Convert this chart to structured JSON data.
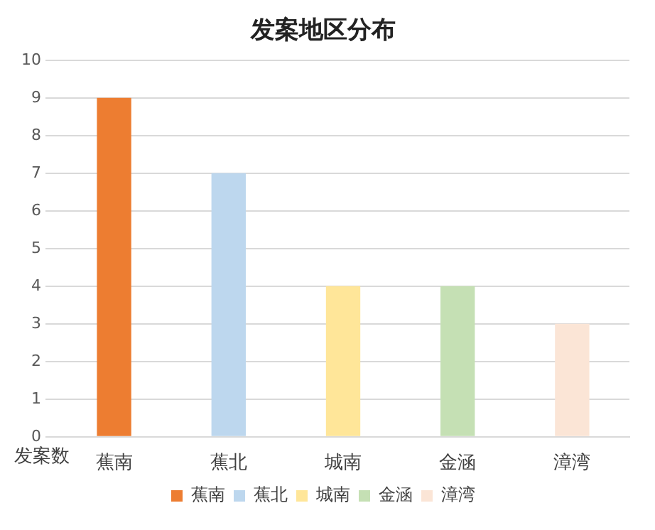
{
  "chart_data": {
    "type": "bar",
    "title": "发案地区分布",
    "xlabel": "发案数",
    "categories": [
      "蕉南",
      "蕉北",
      "城南",
      "金涵",
      "漳湾"
    ],
    "series": [
      {
        "name": "蕉南",
        "color": "#ed7d31",
        "values": [
          9,
          null,
          null,
          null,
          null
        ]
      },
      {
        "name": "蕉北",
        "color": "#bdd7ee",
        "values": [
          null,
          7,
          null,
          null,
          null
        ]
      },
      {
        "name": "城南",
        "color": "#ffe699",
        "values": [
          null,
          null,
          4,
          null,
          null
        ]
      },
      {
        "name": "金涵",
        "color": "#c5e0b4",
        "values": [
          null,
          null,
          null,
          4,
          null
        ]
      },
      {
        "name": "漳湾",
        "color": "#fbe5d6",
        "values": [
          null,
          null,
          null,
          null,
          3
        ]
      }
    ],
    "ylim": [
      0,
      10
    ],
    "yticks": [
      0,
      1,
      2,
      3,
      4,
      5,
      6,
      7,
      8,
      9,
      10
    ],
    "grid": "y",
    "legend": "bottom"
  }
}
